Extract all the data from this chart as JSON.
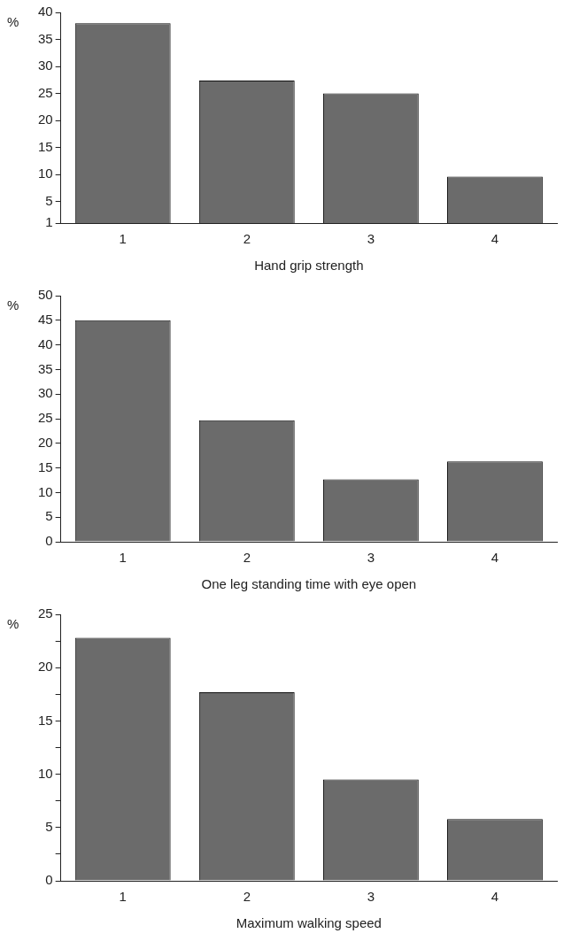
{
  "chart_data": [
    {
      "type": "bar",
      "xlabel": "Hand grip strength",
      "ylabel": "%",
      "categories": [
        "1",
        "2",
        "3",
        "4"
      ],
      "values": [
        38,
        27.4,
        25,
        9.6
      ],
      "color": "#6b6b6b",
      "ylim": [
        1,
        40
      ],
      "yticks": [
        1,
        5,
        10,
        15,
        20,
        25,
        30,
        35,
        40
      ],
      "grid": false,
      "legend": false
    },
    {
      "type": "bar",
      "xlabel": "One leg standing time with eye open",
      "ylabel": "%",
      "categories": [
        "1",
        "2",
        "3",
        "4"
      ],
      "values": [
        45,
        24.7,
        12.7,
        16.3
      ],
      "color": "#6b6b6b",
      "ylim": [
        0,
        50
      ],
      "yticks": [
        0,
        5,
        10,
        15,
        20,
        25,
        30,
        35,
        40,
        45,
        50
      ],
      "grid": false,
      "legend": false
    },
    {
      "type": "bar",
      "xlabel": "Maximum walking speed",
      "ylabel": "%",
      "categories": [
        "1",
        "2",
        "3",
        "4"
      ],
      "values": [
        22.8,
        17.7,
        9.5,
        5.8
      ],
      "color": "#6b6b6b",
      "ylim": [
        0,
        25
      ],
      "yticks": [
        0,
        {
          "value": 2.5,
          "label": null
        },
        5,
        {
          "value": 7.5,
          "label": null
        },
        10,
        {
          "value": 12.5,
          "label": null
        },
        15,
        {
          "value": 17.5,
          "label": null
        },
        20,
        {
          "value": 22.5,
          "label": null
        },
        25
      ],
      "grid": false,
      "legend": false
    }
  ]
}
